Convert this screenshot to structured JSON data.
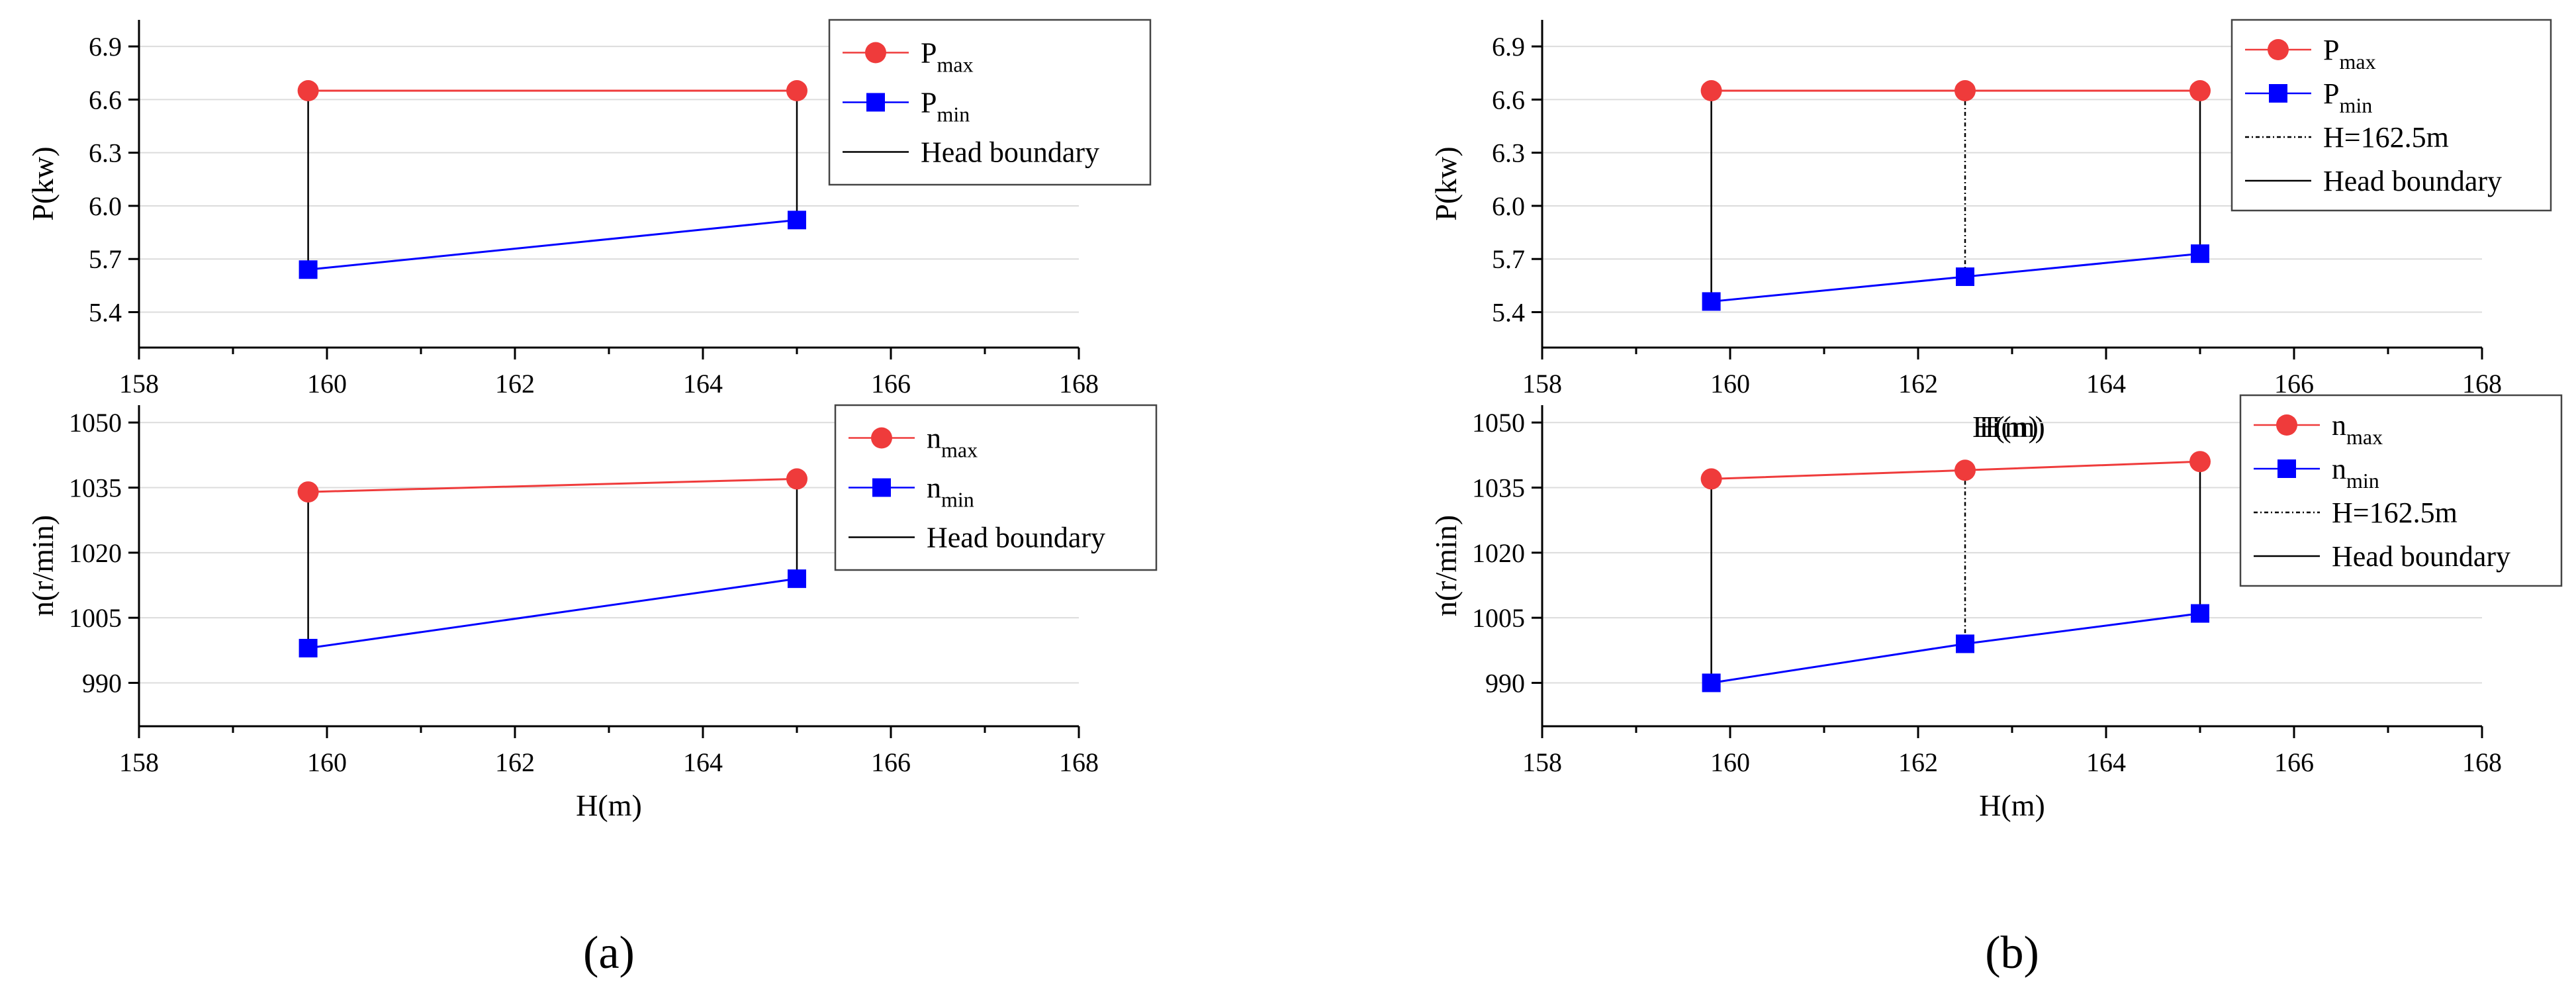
{
  "figure": {
    "panel_labels": [
      "(a)",
      "(b)"
    ]
  },
  "chart_data": [
    {
      "id": "a-power",
      "panel": "a",
      "type": "line",
      "xlabel": "",
      "ylabel": "P(kw)",
      "xlim": [
        158,
        168
      ],
      "ylim": [
        5.2,
        7.05
      ],
      "xticks": [
        158,
        160,
        162,
        164,
        166,
        168
      ],
      "yticks": [
        5.4,
        5.7,
        6.0,
        6.3,
        6.6,
        6.9
      ],
      "ytick_labels": [
        "5.4",
        "5.7",
        "6.0",
        "6.3",
        "6.6",
        "6.9"
      ],
      "grid": true,
      "x": [
        159.8,
        165
      ],
      "series": [
        {
          "name": "P_max",
          "main": "P",
          "sub": "max",
          "marker": "circle",
          "color": "#ef3b3b",
          "values": [
            6.65,
            6.65
          ]
        },
        {
          "name": "P_min",
          "main": "P",
          "sub": "min",
          "marker": "square",
          "color": "#0000ff",
          "values": [
            5.64,
            5.92
          ]
        }
      ],
      "boundaries": [
        {
          "name": "Head boundary",
          "style": "solid",
          "x": [
            159.8,
            165
          ]
        }
      ],
      "legend": {
        "position": "top-right",
        "entries": [
          {
            "main": "P",
            "sub": "max",
            "kind": "circle",
            "color": "#ef3b3b"
          },
          {
            "main": "P",
            "sub": "min",
            "kind": "square",
            "color": "#0000ff"
          },
          {
            "main": "Head boundary",
            "sub": "",
            "kind": "solid",
            "color": "#000000"
          }
        ]
      }
    },
    {
      "id": "a-speed",
      "panel": "a",
      "type": "line",
      "xlabel": "H(m)",
      "ylabel": "n(r/min)",
      "xlim": [
        158,
        168
      ],
      "ylim": [
        980,
        1054
      ],
      "xticks": [
        158,
        160,
        162,
        164,
        166,
        168
      ],
      "yticks": [
        990,
        1005,
        1020,
        1035,
        1050
      ],
      "ytick_labels": [
        "990",
        "1005",
        "1020",
        "1035",
        "1050"
      ],
      "grid": true,
      "x": [
        159.8,
        165
      ],
      "series": [
        {
          "name": "n_max",
          "main": "n",
          "sub": "max",
          "marker": "circle",
          "color": "#ef3b3b",
          "values": [
            1034,
            1037
          ]
        },
        {
          "name": "n_min",
          "main": "n",
          "sub": "min",
          "marker": "square",
          "color": "#0000ff",
          "values": [
            998,
            1014
          ]
        }
      ],
      "boundaries": [
        {
          "name": "Head boundary",
          "style": "solid",
          "x": [
            159.8,
            165
          ]
        }
      ],
      "legend": {
        "position": "top-right",
        "entries": [
          {
            "main": "n",
            "sub": "max",
            "kind": "circle",
            "color": "#ef3b3b"
          },
          {
            "main": "n",
            "sub": "min",
            "kind": "square",
            "color": "#0000ff"
          },
          {
            "main": "Head boundary",
            "sub": "",
            "kind": "solid",
            "color": "#000000"
          }
        ]
      }
    },
    {
      "id": "b-power",
      "panel": "b",
      "type": "line",
      "xlabel": "H(m)",
      "ylabel": "P(kw)",
      "xlim": [
        158,
        168
      ],
      "ylim": [
        5.2,
        7.05
      ],
      "xticks": [
        158,
        160,
        162,
        164,
        166,
        168
      ],
      "yticks": [
        5.4,
        5.7,
        6.0,
        6.3,
        6.6,
        6.9
      ],
      "ytick_labels": [
        "5.4",
        "5.7",
        "6.0",
        "6.3",
        "6.6",
        "6.9"
      ],
      "grid": true,
      "x": [
        159.8,
        162.5,
        165
      ],
      "series": [
        {
          "name": "P_max",
          "main": "P",
          "sub": "max",
          "marker": "circle",
          "color": "#ef3b3b",
          "values": [
            6.65,
            6.65,
            6.65
          ]
        },
        {
          "name": "P_min",
          "main": "P",
          "sub": "min",
          "marker": "square",
          "color": "#0000ff",
          "values": [
            5.46,
            5.6,
            5.73
          ]
        }
      ],
      "boundaries": [
        {
          "name": "H=162.5m",
          "style": "dashdot",
          "x": [
            162.5
          ]
        },
        {
          "name": "Head boundary",
          "style": "solid",
          "x": [
            159.8,
            165
          ]
        }
      ],
      "legend": {
        "position": "top-right",
        "entries": [
          {
            "main": "P",
            "sub": "max",
            "kind": "circle",
            "color": "#ef3b3b"
          },
          {
            "main": "P",
            "sub": "min",
            "kind": "square",
            "color": "#0000ff"
          },
          {
            "main": "H=162.5m",
            "sub": "",
            "kind": "dashdot",
            "color": "#000000"
          },
          {
            "main": "Head boundary",
            "sub": "",
            "kind": "solid",
            "color": "#000000"
          }
        ]
      }
    },
    {
      "id": "b-speed",
      "panel": "b",
      "type": "line",
      "xlabel": "H(m)",
      "ylabel": "n(r/min)",
      "xlim": [
        158,
        168
      ],
      "ylim": [
        980,
        1054
      ],
      "xticks": [
        158,
        160,
        162,
        164,
        166,
        168
      ],
      "yticks": [
        990,
        1005,
        1020,
        1035,
        1050
      ],
      "ytick_labels": [
        "990",
        "1005",
        "1020",
        "1035",
        "1050"
      ],
      "grid": true,
      "x": [
        159.8,
        162.5,
        165
      ],
      "series": [
        {
          "name": "n_max",
          "main": "n",
          "sub": "max",
          "marker": "circle",
          "color": "#ef3b3b",
          "values": [
            1037,
            1039,
            1041
          ]
        },
        {
          "name": "n_min",
          "main": "n",
          "sub": "min",
          "marker": "square",
          "color": "#0000ff",
          "values": [
            990,
            999,
            1006
          ]
        }
      ],
      "boundaries": [
        {
          "name": "H=162.5m",
          "style": "dashdot",
          "x": [
            162.5
          ]
        },
        {
          "name": "Head boundary",
          "style": "solid",
          "x": [
            159.8,
            165
          ]
        }
      ],
      "legend": {
        "position": "top-right",
        "entries": [
          {
            "main": "n",
            "sub": "max",
            "kind": "circle",
            "color": "#ef3b3b"
          },
          {
            "main": "n",
            "sub": "min",
            "kind": "square",
            "color": "#0000ff"
          },
          {
            "main": "H=162.5m",
            "sub": "",
            "kind": "dashdot",
            "color": "#000000"
          },
          {
            "main": "Head boundary",
            "sub": "",
            "kind": "solid",
            "color": "#000000"
          }
        ]
      }
    }
  ]
}
